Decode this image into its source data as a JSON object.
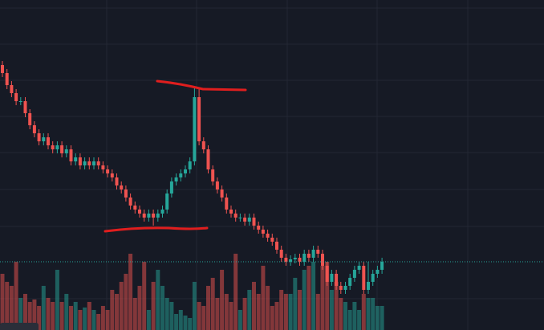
{
  "chart_data": {
    "type": "candlestick",
    "ylim": [
      0,
      411
    ],
    "y2lim": [
      0,
      411
    ],
    "up_color": "#26a69a",
    "down_color": "#ef5350",
    "open": [
      330,
      320,
      305,
      295,
      285,
      285,
      270,
      255,
      245,
      235,
      240,
      230,
      225,
      230,
      220,
      225,
      210,
      215,
      205,
      210,
      205,
      210,
      205,
      200,
      195,
      190,
      180,
      175,
      165,
      155,
      150,
      145,
      140,
      145,
      140,
      145,
      150,
      170,
      185,
      190,
      195,
      200,
      210,
      290,
      235,
      225,
      200,
      185,
      175,
      165,
      150,
      145,
      140,
      140,
      135,
      140,
      130,
      125,
      120,
      115,
      110,
      100,
      90,
      85,
      88,
      90,
      85,
      95,
      90,
      100,
      95,
      80,
      60,
      70,
      55,
      50,
      55,
      65,
      75,
      80,
      50,
      60,
      70,
      75
    ],
    "high": [
      335,
      325,
      310,
      300,
      290,
      290,
      275,
      260,
      250,
      245,
      245,
      235,
      235,
      235,
      230,
      230,
      220,
      220,
      215,
      215,
      215,
      215,
      210,
      205,
      200,
      195,
      185,
      180,
      170,
      160,
      155,
      150,
      150,
      150,
      150,
      155,
      175,
      190,
      195,
      200,
      205,
      215,
      302,
      300,
      240,
      230,
      205,
      190,
      180,
      170,
      155,
      150,
      145,
      145,
      145,
      145,
      135,
      130,
      125,
      120,
      115,
      105,
      95,
      93,
      95,
      95,
      100,
      100,
      105,
      105,
      100,
      85,
      75,
      75,
      60,
      60,
      70,
      80,
      85,
      85,
      85,
      75,
      80,
      90
    ],
    "low": [
      315,
      300,
      290,
      280,
      280,
      265,
      250,
      240,
      230,
      230,
      225,
      220,
      220,
      215,
      215,
      205,
      205,
      200,
      200,
      200,
      200,
      200,
      195,
      190,
      185,
      175,
      170,
      160,
      150,
      145,
      140,
      135,
      135,
      130,
      135,
      140,
      145,
      165,
      180,
      185,
      190,
      195,
      205,
      230,
      220,
      195,
      180,
      170,
      160,
      145,
      140,
      135,
      135,
      130,
      130,
      125,
      120,
      115,
      110,
      105,
      95,
      85,
      80,
      80,
      83,
      80,
      80,
      85,
      85,
      90,
      75,
      55,
      55,
      50,
      45,
      45,
      50,
      60,
      70,
      45,
      45,
      55,
      65,
      70
    ],
    "close": [
      320,
      305,
      295,
      285,
      285,
      270,
      255,
      245,
      235,
      240,
      230,
      225,
      230,
      220,
      225,
      210,
      215,
      205,
      210,
      205,
      210,
      205,
      200,
      195,
      190,
      180,
      175,
      165,
      155,
      150,
      145,
      140,
      145,
      140,
      145,
      150,
      170,
      185,
      190,
      195,
      200,
      210,
      290,
      235,
      225,
      200,
      185,
      175,
      165,
      150,
      145,
      140,
      140,
      135,
      140,
      130,
      125,
      120,
      115,
      110,
      100,
      90,
      85,
      88,
      90,
      85,
      95,
      90,
      100,
      95,
      80,
      60,
      70,
      55,
      50,
      55,
      65,
      75,
      80,
      50,
      60,
      70,
      75,
      85
    ],
    "volume": [
      70,
      60,
      55,
      85,
      40,
      45,
      35,
      38,
      30,
      55,
      40,
      35,
      75,
      35,
      45,
      30,
      35,
      25,
      28,
      35,
      25,
      20,
      30,
      25,
      50,
      45,
      60,
      70,
      95,
      40,
      55,
      85,
      25,
      60,
      75,
      55,
      40,
      35,
      20,
      25,
      18,
      15,
      60,
      35,
      30,
      55,
      65,
      40,
      75,
      45,
      35,
      95,
      25,
      40,
      50,
      60,
      45,
      80,
      55,
      30,
      35,
      50,
      45,
      45,
      65,
      50,
      75,
      80,
      85,
      45,
      80,
      85,
      50,
      60,
      40,
      35,
      25,
      35,
      25,
      45,
      40,
      40,
      30,
      30
    ]
  }
}
